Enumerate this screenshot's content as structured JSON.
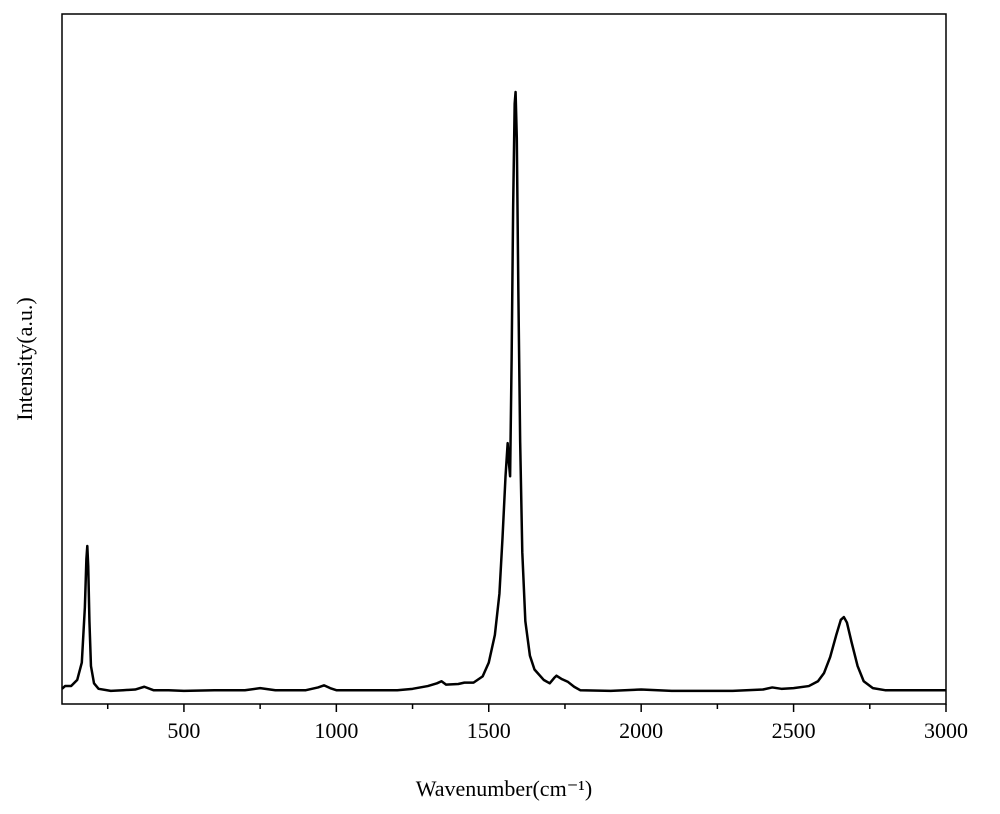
{
  "chart_data": {
    "type": "line",
    "xlabel": "Wavenumber(cm⁻¹)",
    "ylabel": "Intensity(a.u.)",
    "xlim": [
      100,
      3000
    ],
    "ylim": [
      0,
      100
    ],
    "xticks": [
      500,
      1000,
      1500,
      2000,
      2500,
      3000
    ],
    "xminorticks": [
      250,
      750,
      1250,
      1750,
      2250,
      2750
    ],
    "series": [
      {
        "color": "#000000",
        "x": [
          100,
          110,
          130,
          150,
          165,
          175,
          180,
          183,
          186,
          190,
          195,
          205,
          220,
          260,
          300,
          340,
          370,
          400,
          450,
          500,
          600,
          700,
          750,
          800,
          900,
          940,
          960,
          980,
          1000,
          1100,
          1200,
          1250,
          1300,
          1330,
          1345,
          1360,
          1400,
          1420,
          1450,
          1480,
          1500,
          1520,
          1535,
          1545,
          1555,
          1562,
          1566,
          1570,
          1575,
          1580,
          1585,
          1588,
          1592,
          1597,
          1603,
          1610,
          1620,
          1635,
          1650,
          1680,
          1700,
          1715,
          1722,
          1740,
          1760,
          1780,
          1800,
          1900,
          2000,
          2100,
          2200,
          2300,
          2400,
          2430,
          2460,
          2500,
          2550,
          2580,
          2600,
          2620,
          2640,
          2655,
          2665,
          2675,
          2690,
          2710,
          2730,
          2760,
          2800,
          2900,
          3000
        ],
        "values": [
          2.2,
          2.6,
          2.6,
          3.5,
          6,
          14,
          21,
          22.9,
          20,
          12,
          5.5,
          3,
          2.2,
          1.9,
          2,
          2.1,
          2.5,
          2,
          2,
          1.9,
          2,
          2,
          2.3,
          2,
          2,
          2.4,
          2.7,
          2.3,
          2,
          2,
          2,
          2.2,
          2.6,
          3,
          3.3,
          2.8,
          2.9,
          3.1,
          3.1,
          4,
          6,
          10,
          16,
          24,
          33,
          37.8,
          35,
          33,
          50,
          72,
          87,
          88.7,
          82,
          60,
          38,
          22,
          12,
          7,
          5,
          3.5,
          3,
          3.8,
          4.1,
          3.6,
          3.2,
          2.5,
          2,
          1.9,
          2.1,
          1.9,
          1.9,
          1.9,
          2.1,
          2.4,
          2.2,
          2.3,
          2.6,
          3.3,
          4.5,
          6.8,
          10,
          12.2,
          12.6,
          11.8,
          9,
          5.5,
          3.3,
          2.3,
          2,
          2,
          2
        ]
      }
    ]
  }
}
